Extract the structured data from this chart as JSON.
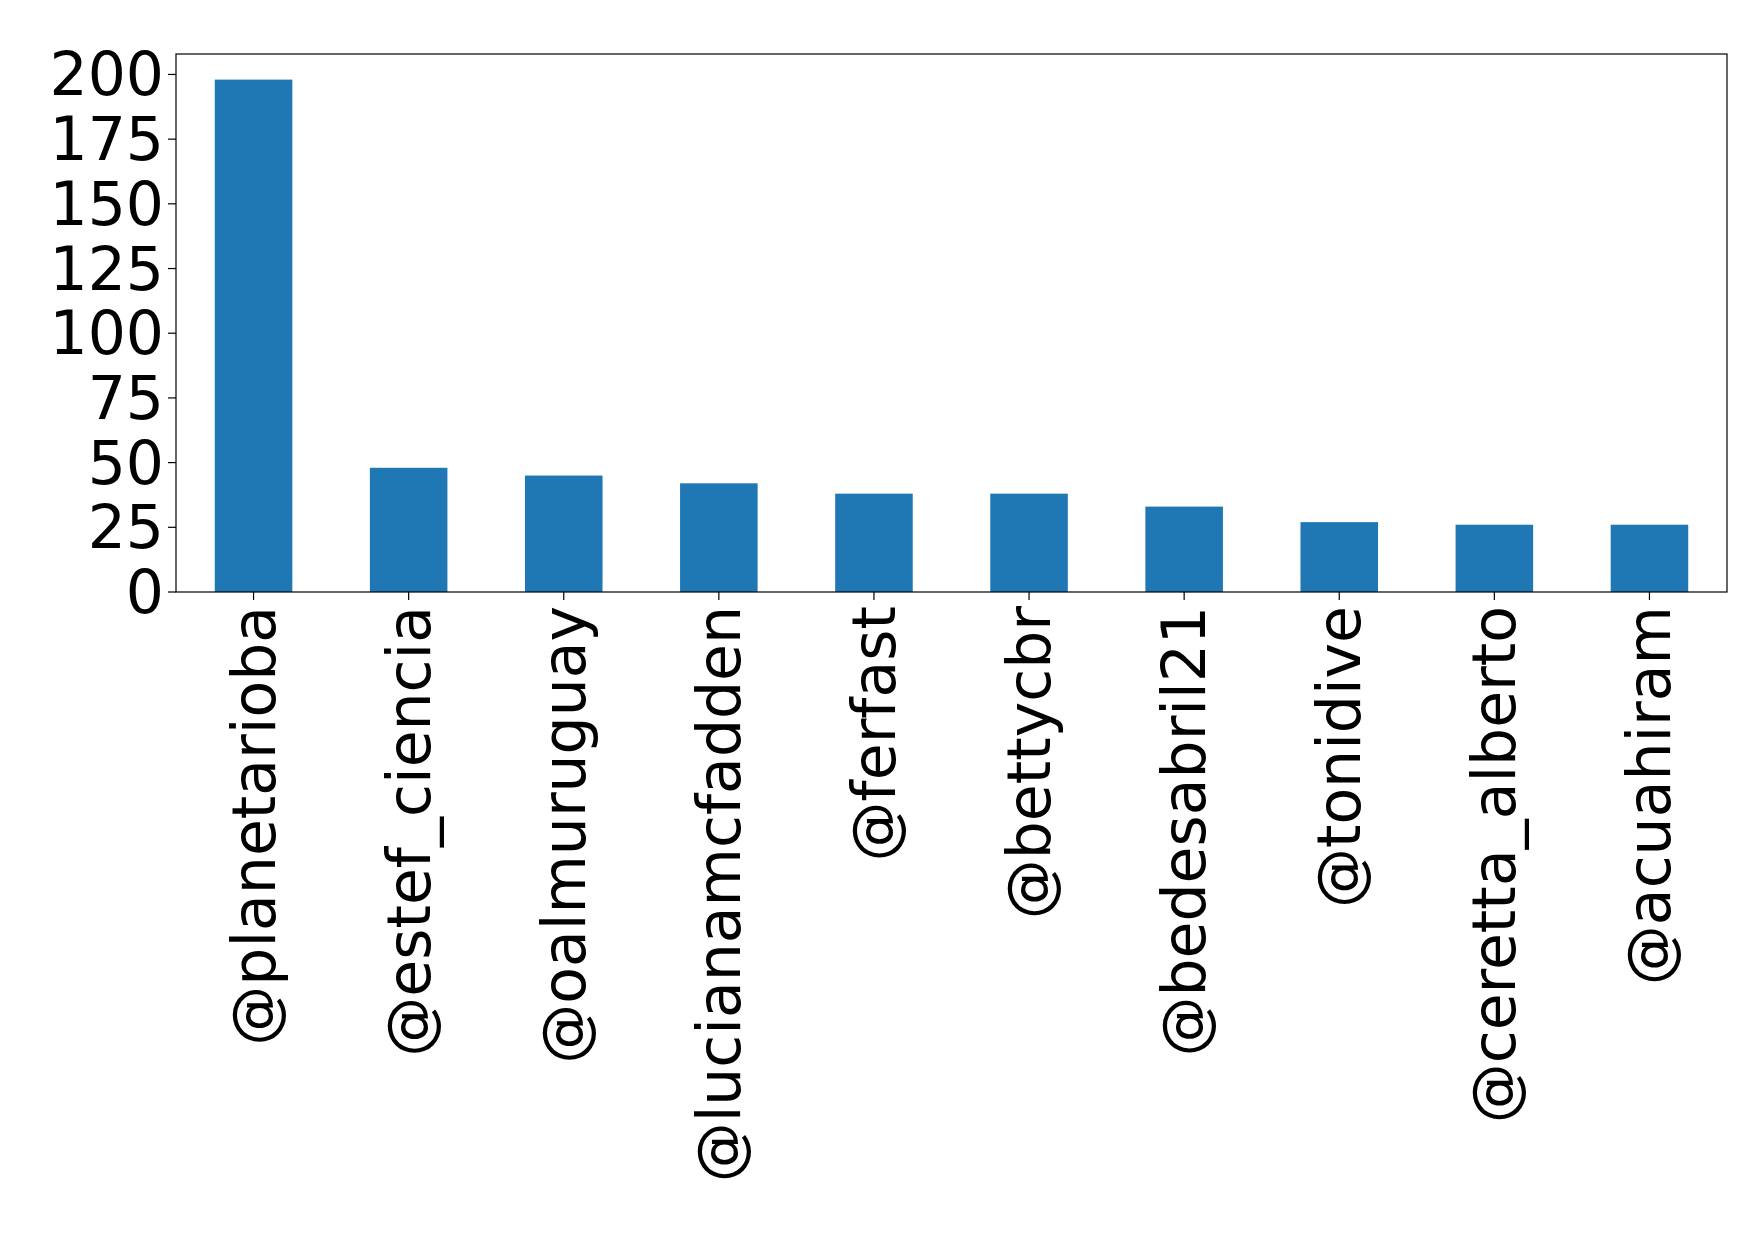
{
  "chart_data": {
    "type": "bar",
    "categories": [
      "@planetarioba",
      "@estef_ciencia",
      "@oalmuruguay",
      "@lucianamcfadden",
      "@ferfast",
      "@bettycbr",
      "@bedesabril21",
      "@tonidive",
      "@ceretta_alberto",
      "@acuahiram"
    ],
    "values": [
      198,
      48,
      45,
      42,
      38,
      38,
      33,
      27,
      26,
      26
    ],
    "color": "#1f77b4",
    "ylim": [
      0,
      207.9
    ],
    "yticks": [
      0,
      25,
      50,
      75,
      100,
      125,
      150,
      175,
      200
    ],
    "grid": false
  }
}
